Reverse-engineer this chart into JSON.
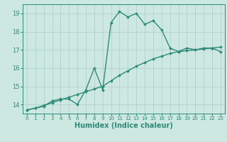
{
  "line1_x": [
    0,
    1,
    2,
    3,
    4,
    5,
    6,
    7,
    8,
    9,
    10,
    11,
    12,
    13,
    14,
    15,
    16,
    17,
    18,
    19,
    20,
    21,
    22,
    23
  ],
  "line1_y": [
    13.7,
    13.8,
    13.9,
    14.2,
    14.3,
    14.3,
    14.0,
    14.8,
    16.0,
    14.8,
    18.5,
    19.1,
    18.8,
    19.0,
    18.4,
    18.6,
    18.1,
    17.1,
    16.9,
    17.1,
    17.0,
    17.1,
    17.1,
    16.9
  ],
  "line2_x": [
    0,
    1,
    2,
    3,
    4,
    5,
    6,
    7,
    8,
    9,
    10,
    11,
    12,
    13,
    14,
    15,
    16,
    17,
    18,
    19,
    20,
    21,
    22,
    23
  ],
  "line2_y": [
    13.7,
    13.8,
    13.95,
    14.1,
    14.25,
    14.4,
    14.55,
    14.7,
    14.85,
    15.0,
    15.3,
    15.6,
    15.85,
    16.1,
    16.3,
    16.5,
    16.65,
    16.8,
    16.9,
    16.95,
    17.0,
    17.05,
    17.1,
    17.15
  ],
  "line_color": "#2e8b7a",
  "bg_color": "#cce8e0",
  "grid_color": "#aacfc8",
  "xlabel": "Humidex (Indice chaleur)",
  "ylim": [
    13.5,
    19.5
  ],
  "xlim": [
    -0.5,
    23.5
  ],
  "yticks": [
    14,
    15,
    16,
    17,
    18,
    19
  ],
  "xticks": [
    0,
    1,
    2,
    3,
    4,
    5,
    6,
    7,
    8,
    9,
    10,
    11,
    12,
    13,
    14,
    15,
    16,
    17,
    18,
    19,
    20,
    21,
    22,
    23
  ],
  "marker": "D",
  "markersize": 2.0,
  "linewidth": 1.0,
  "xlabel_fontsize": 7,
  "tick_fontsize": 6
}
